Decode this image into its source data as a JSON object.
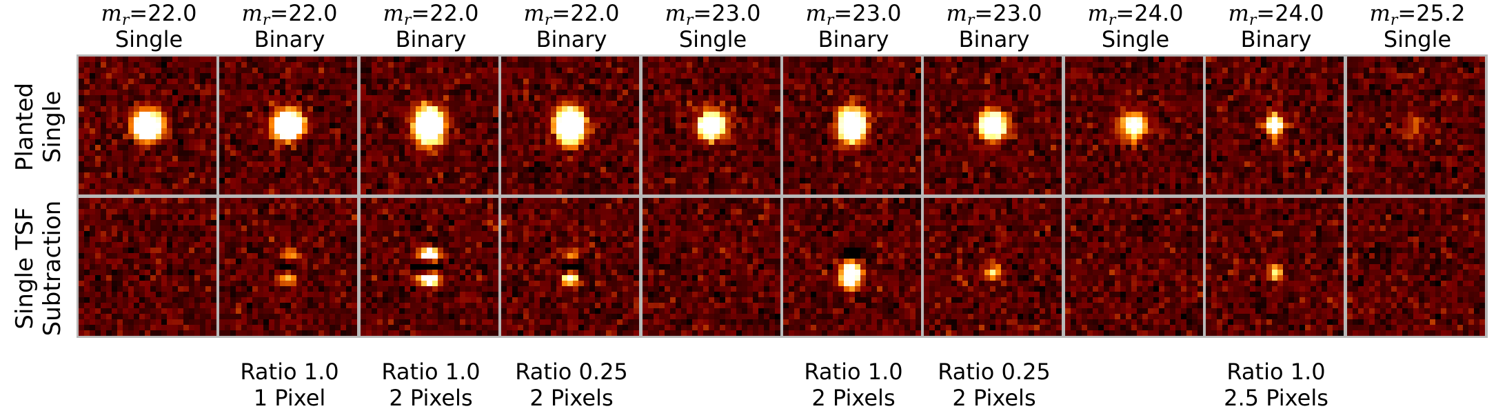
{
  "columns": [
    {
      "mag_symbol": "m",
      "mag_sub": "r",
      "mag_value": "=22.0",
      "type": "Single",
      "note": [],
      "signal": {
        "top": 1.0,
        "top_shape": "round",
        "bottom": 0.0,
        "bottom_shape": "none"
      }
    },
    {
      "mag_symbol": "m",
      "mag_sub": "r",
      "mag_value": "=22.0",
      "type": "Binary",
      "note": [
        "Ratio 1.0",
        "1 Pixel"
      ],
      "signal": {
        "top": 1.0,
        "top_shape": "round",
        "bottom": 0.22,
        "bottom_shape": "vpair"
      }
    },
    {
      "mag_symbol": "m",
      "mag_sub": "r",
      "mag_value": "=22.0",
      "type": "Binary",
      "note": [
        "Ratio 1.0",
        "2 Pixels"
      ],
      "signal": {
        "top": 1.0,
        "top_shape": "tall",
        "bottom": 0.75,
        "bottom_shape": "vpair"
      }
    },
    {
      "mag_symbol": "m",
      "mag_sub": "r",
      "mag_value": "=22.0",
      "type": "Binary",
      "note": [
        "Ratio 0.25",
        "2 Pixels"
      ],
      "signal": {
        "top": 1.0,
        "top_shape": "tall",
        "bottom": 0.45,
        "bottom_shape": "vpair-weak"
      }
    },
    {
      "mag_symbol": "m",
      "mag_sub": "r",
      "mag_value": "=23.0",
      "type": "Single",
      "note": [],
      "signal": {
        "top": 0.7,
        "top_shape": "round",
        "bottom": 0.0,
        "bottom_shape": "none"
      }
    },
    {
      "mag_symbol": "m",
      "mag_sub": "r",
      "mag_value": "=23.0",
      "type": "Binary",
      "note": [
        "Ratio 1.0",
        "2 Pixels"
      ],
      "signal": {
        "top": 0.75,
        "top_shape": "tall",
        "bottom": 0.8,
        "bottom_shape": "diag"
      }
    },
    {
      "mag_symbol": "m",
      "mag_sub": "r",
      "mag_value": "=23.0",
      "type": "Binary",
      "note": [
        "Ratio 0.25",
        "2 Pixels"
      ],
      "signal": {
        "top": 0.7,
        "top_shape": "round",
        "bottom": 0.3,
        "bottom_shape": "dot"
      }
    },
    {
      "mag_symbol": "m",
      "mag_sub": "r",
      "mag_value": "=24.0",
      "type": "Single",
      "note": [],
      "signal": {
        "top": 0.45,
        "top_shape": "round",
        "bottom": 0.0,
        "bottom_shape": "none"
      }
    },
    {
      "mag_symbol": "m",
      "mag_sub": "r",
      "mag_value": "=24.0",
      "type": "Binary",
      "note": [
        "Ratio 1.0",
        "2.5 Pixels"
      ],
      "signal": {
        "top": 0.4,
        "top_shape": "cross",
        "bottom": 0.3,
        "bottom_shape": "dot"
      }
    },
    {
      "mag_symbol": "m",
      "mag_sub": "r",
      "mag_value": "=25.2",
      "type": "Single",
      "note": [],
      "signal": {
        "top": 0.1,
        "top_shape": "round",
        "bottom": 0.0,
        "bottom_shape": "none"
      }
    }
  ],
  "rows": [
    {
      "label_1": "Planted",
      "label_2": "Single"
    },
    {
      "label_1": "Single TSF",
      "label_2": "Subtraction"
    }
  ],
  "colormap": "afmhot",
  "colors": {
    "frame": "#b8b8b8",
    "background": "#ffffff",
    "text": "#000000"
  }
}
